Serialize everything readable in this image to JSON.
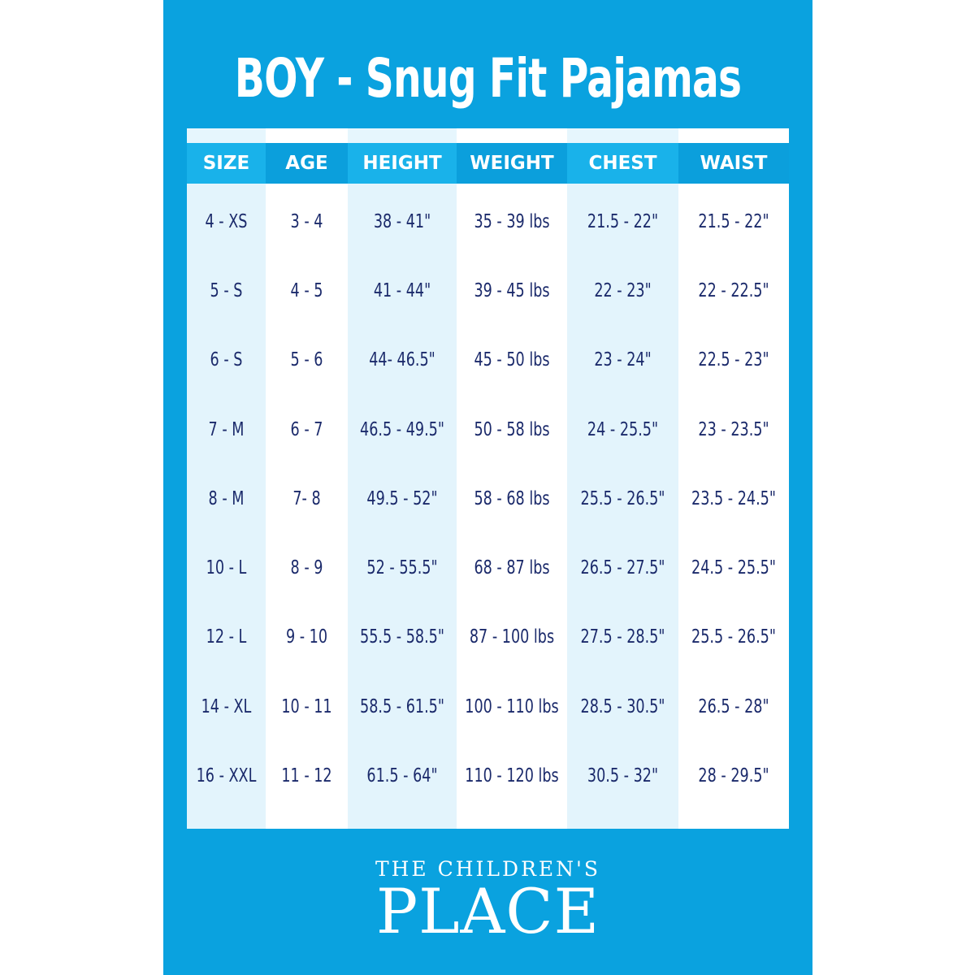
{
  "title": "BOY - Snug Fit Pajamas",
  "columns": [
    {
      "header": "SIZE",
      "values": [
        "4 - XS",
        "5 - S",
        "6 - S",
        "7 - M",
        "8 - M",
        "10 - L",
        "12 - L",
        "14 - XL",
        "16 - XXL"
      ]
    },
    {
      "header": "AGE",
      "values": [
        "3 - 4",
        "4 - 5",
        "5 - 6",
        "6 - 7",
        "7- 8",
        "8 - 9",
        "9 - 10",
        "10 - 11",
        "11 - 12"
      ]
    },
    {
      "header": "HEIGHT",
      "values": [
        "38 - 41\"",
        "41 - 44\"",
        "44- 46.5\"",
        "46.5 - 49.5\"",
        "49.5 - 52\"",
        "52 - 55.5\"",
        "55.5 - 58.5\"",
        "58.5 - 61.5\"",
        "61.5 - 64\""
      ]
    },
    {
      "header": "WEIGHT",
      "values": [
        "35 - 39 lbs",
        "39 - 45 lbs",
        "45 - 50 lbs",
        "50 - 58 lbs",
        "58 - 68 lbs",
        "68 - 87 lbs",
        "87 - 100 lbs",
        "100 - 110 lbs",
        "110 - 120 lbs"
      ]
    },
    {
      "header": "CHEST",
      "values": [
        "21.5 - 22\"",
        "22 - 23\"",
        "23 - 24\"",
        "24 - 25.5\"",
        "25.5 - 26.5\"",
        "26.5 - 27.5\"",
        "27.5 - 28.5\"",
        "28.5 - 30.5\"",
        "30.5 - 32\""
      ]
    },
    {
      "header": "WAIST",
      "values": [
        "21.5 - 22\"",
        "22 - 22.5\"",
        "22.5 - 23\"",
        "23 - 23.5\"",
        "23.5 - 24.5\"",
        "24.5 - 25.5\"",
        "25.5 - 26.5\"",
        "26.5 - 28\"",
        "28 - 29.5\""
      ]
    }
  ],
  "logo": {
    "line1": "THE CHILDREN'S",
    "line2": "PLACE"
  },
  "colors": {
    "panel": "#0aa2df",
    "text": "#1b2a6b",
    "light_cell": "#e3f4fc"
  }
}
